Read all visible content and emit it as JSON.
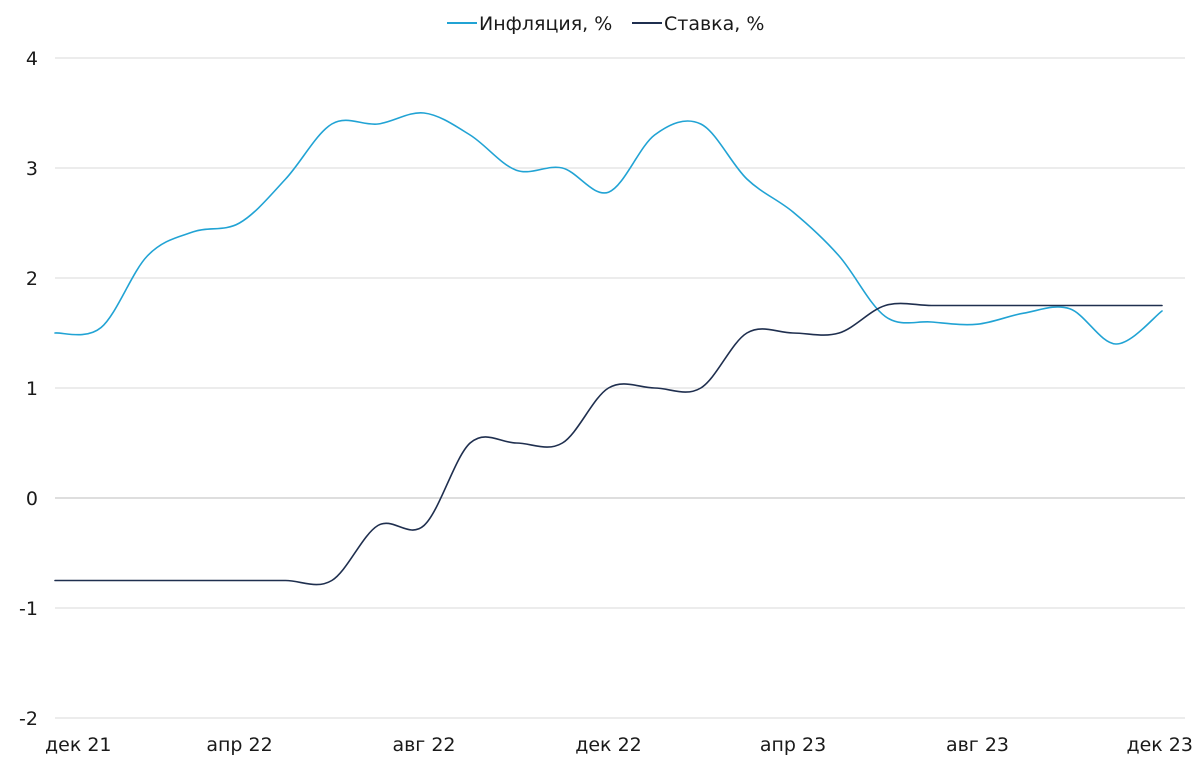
{
  "chart_data": {
    "type": "line",
    "title": "",
    "xlabel": "",
    "ylabel": "",
    "ylim": [
      -2,
      4
    ],
    "yticks": [
      "4",
      "3",
      "2",
      "1",
      "0",
      "-1",
      "-2"
    ],
    "x_tick_labels": [
      "дек 21",
      "апр 22",
      "авг 22",
      "дек 22",
      "апр 23",
      "авг 23",
      "дек 23"
    ],
    "x_tick_index": [
      0,
      4,
      8,
      12,
      16,
      20,
      24
    ],
    "grid": "horizontal",
    "legend_position": "top-center",
    "x": [
      "дек 21",
      "янв 22",
      "фев 22",
      "мар 22",
      "апр 22",
      "май 22",
      "июн 22",
      "июл 22",
      "авг 22",
      "сен 22",
      "окт 22",
      "ноя 22",
      "дек 22",
      "янв 23",
      "фев 23",
      "мар 23",
      "апр 23",
      "май 23",
      "июн 23",
      "июл 23",
      "авг 23",
      "сен 23",
      "окт 23",
      "ноя 23",
      "дек 23"
    ],
    "series": [
      {
        "name": "Инфляция, %",
        "color": "#21a3d4",
        "values": [
          1.5,
          1.55,
          2.2,
          2.42,
          2.5,
          2.9,
          3.4,
          3.4,
          3.5,
          3.3,
          2.98,
          3.0,
          2.78,
          3.3,
          3.4,
          2.9,
          2.6,
          2.2,
          1.65,
          1.6,
          1.58,
          1.68,
          1.72,
          1.4,
          1.7
        ]
      },
      {
        "name": "Ставка, %",
        "color": "#1f2f4f",
        "values": [
          -0.75,
          -0.75,
          -0.75,
          -0.75,
          -0.75,
          -0.75,
          -0.75,
          -0.25,
          -0.25,
          0.5,
          0.5,
          0.5,
          1.0,
          1.0,
          1.0,
          1.5,
          1.5,
          1.5,
          1.75,
          1.75,
          1.75,
          1.75,
          1.75,
          1.75,
          1.75
        ]
      }
    ]
  }
}
